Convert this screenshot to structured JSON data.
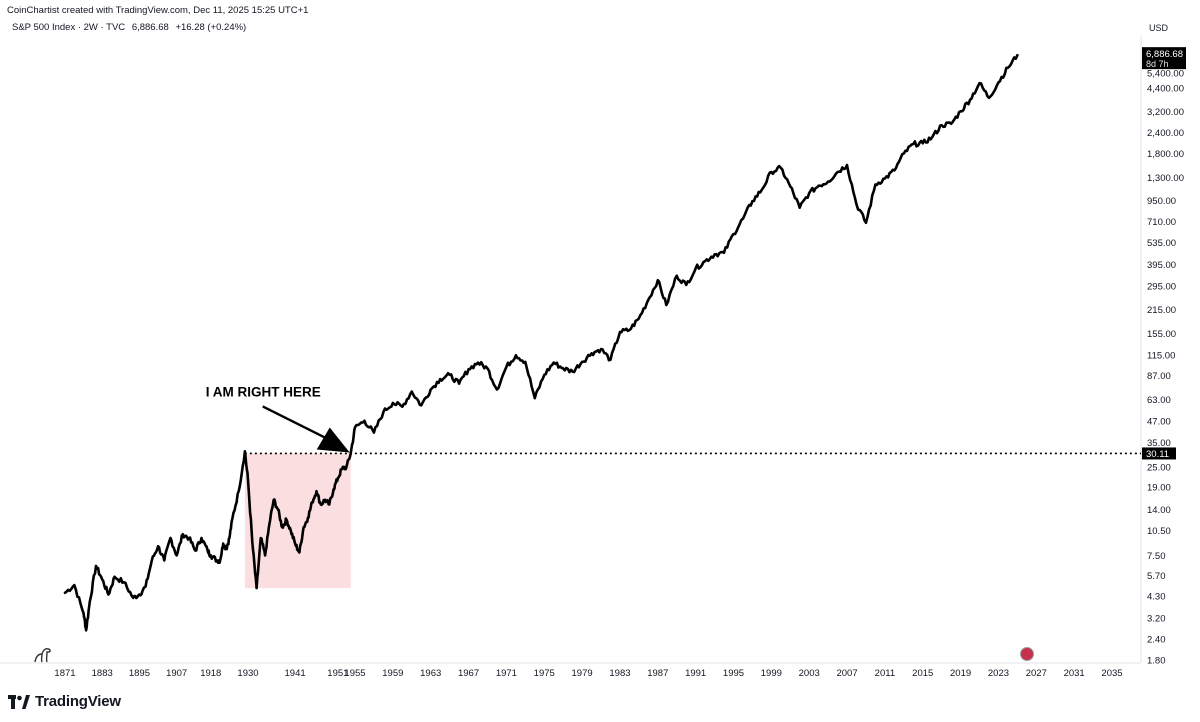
{
  "header": {
    "credit": "CoinChartist created with TradingView.com, Dec 11, 2025 15:25 UTC+1",
    "symbol": "S&P 500 Index · 2W · TVC",
    "price": "6,886.68",
    "change": "+16.28 (+0.24%)",
    "currency": "USD"
  },
  "price_badge": {
    "value": "6,886.68",
    "countdown": "8d 7h"
  },
  "level_badge": {
    "value": "30.11"
  },
  "annotation": {
    "text": "I AM RIGHT HERE"
  },
  "branding": {
    "logo_text": "TradingView",
    "logo_icon": "tradingview-logo-icon",
    "corner_icon": "dinosaur-icon",
    "flag_icon": "us-flag-icon"
  },
  "colors": {
    "line": "#000000",
    "highlight": "#fbdedf",
    "badge_bg": "#000000",
    "badge_text": "#ffffff"
  },
  "chart_data": {
    "type": "line",
    "scale": "log",
    "title": "",
    "xlabel": "",
    "ylabel": "",
    "ylim": [
      1.6,
      7000
    ],
    "xlim": [
      1868,
      2041
    ],
    "x_ticks": [
      "1871",
      "1883",
      "1895",
      "1907",
      "1918",
      "1930",
      "1941",
      "1951",
      "1955",
      "1959",
      "1963",
      "1967",
      "1971",
      "1975",
      "1979",
      "1983",
      "1987",
      "1991",
      "1995",
      "1999",
      "2003",
      "2007",
      "2011",
      "2015",
      "2019",
      "2023",
      "2027",
      "2031",
      "2035"
    ],
    "y_ticks": [
      "1.80",
      "2.40",
      "3.20",
      "4.30",
      "5.70",
      "7.50",
      "10.50",
      "14.00",
      "19.00",
      "25.00",
      "35.00",
      "47.00",
      "63.00",
      "87.00",
      "115.00",
      "155.00",
      "215.00",
      "295.00",
      "395.00",
      "535.00",
      "710.00",
      "950.00",
      "1,300.00",
      "1,800.00",
      "2,400.00",
      "3,200.00",
      "4,400.00",
      "5,400.00"
    ],
    "series": [
      {
        "name": "",
        "points": [
          [
            "1871",
            4.5
          ],
          [
            "1874",
            5.0
          ],
          [
            "1877",
            3.4
          ],
          [
            "1877.8",
            2.7
          ],
          [
            "1879",
            4.0
          ],
          [
            "1881",
            6.5
          ],
          [
            "1883",
            5.4
          ],
          [
            "1885",
            4.4
          ],
          [
            "1887",
            5.6
          ],
          [
            "1890",
            5.2
          ],
          [
            "1893",
            4.2
          ],
          [
            "1895",
            4.4
          ],
          [
            "1897",
            4.9
          ],
          [
            "1899",
            7.0
          ],
          [
            "1901",
            8.5
          ],
          [
            "1903",
            7.0
          ],
          [
            "1905",
            9.5
          ],
          [
            "1907",
            7.5
          ],
          [
            "1909",
            10.0
          ],
          [
            "1911",
            9.5
          ],
          [
            "1913",
            8.0
          ],
          [
            "1915",
            9.5
          ],
          [
            "1917",
            8.0
          ],
          [
            "1918",
            7.5
          ],
          [
            "1920",
            7.0
          ],
          [
            "1921",
            7.0
          ],
          [
            "1922",
            8.8
          ],
          [
            "1923",
            8.2
          ],
          [
            "1924",
            9.5
          ],
          [
            "1925",
            12.5
          ],
          [
            "1927",
            18.0
          ],
          [
            "1929",
            31.0
          ],
          [
            "1930",
            21.0
          ],
          [
            "1931",
            9.0
          ],
          [
            "1932",
            4.8
          ],
          [
            "1933",
            9.5
          ],
          [
            "1934",
            7.5
          ],
          [
            "1935",
            11.5
          ],
          [
            "1936",
            16.0
          ],
          [
            "1937",
            14.0
          ],
          [
            "1938",
            11.0
          ],
          [
            "1939",
            12.2
          ],
          [
            "1940",
            10.5
          ],
          [
            "1941",
            8.8
          ],
          [
            "1942",
            7.8
          ],
          [
            "1943",
            11.0
          ],
          [
            "1944",
            12.5
          ],
          [
            "1945",
            15.5
          ],
          [
            "1946",
            18.0
          ],
          [
            "1947",
            15.0
          ],
          [
            "1948",
            16.0
          ],
          [
            "1949",
            15.0
          ],
          [
            "1950",
            18.5
          ],
          [
            "1951",
            21.5
          ],
          [
            "1952",
            24.5
          ],
          [
            "1953",
            25.0
          ],
          [
            "1954",
            30.11
          ],
          [
            "1955",
            43.0
          ],
          [
            "1956",
            47.0
          ],
          [
            "1957",
            40.0
          ],
          [
            "1958",
            53.0
          ],
          [
            "1959",
            60.0
          ],
          [
            "1960",
            57.0
          ],
          [
            "1961",
            70.0
          ],
          [
            "1962",
            58.0
          ],
          [
            "1963",
            72.0
          ],
          [
            "1964",
            83.0
          ],
          [
            "1965",
            88.0
          ],
          [
            "1966",
            78.0
          ],
          [
            "1967",
            95.0
          ],
          [
            "1968",
            104.0
          ],
          [
            "1969",
            96.0
          ],
          [
            "1970",
            72.0
          ],
          [
            "1971",
            98.0
          ],
          [
            "1972",
            115.0
          ],
          [
            "1973",
            105.0
          ],
          [
            "1974",
            64.0
          ],
          [
            "1975",
            88.0
          ],
          [
            "1976",
            104.0
          ],
          [
            "1977",
            96.0
          ],
          [
            "1978",
            92.0
          ],
          [
            "1979",
            105.0
          ],
          [
            "1980",
            118.0
          ],
          [
            "1981",
            125.0
          ],
          [
            "1982",
            108.0
          ],
          [
            "1983",
            158.0
          ],
          [
            "1984",
            162.0
          ],
          [
            "1985",
            190.0
          ],
          [
            "1986",
            245.0
          ],
          [
            "1987",
            320.0
          ],
          [
            "1987.9",
            228.0
          ],
          [
            "1989",
            340.0
          ],
          [
            "1990",
            300.0
          ],
          [
            "1991",
            375.0
          ],
          [
            "1992",
            415.0
          ],
          [
            "1993",
            455.0
          ],
          [
            "1994",
            465.0
          ],
          [
            "1995",
            600.0
          ],
          [
            "1996",
            740.0
          ],
          [
            "1997",
            940.0
          ],
          [
            "1998",
            1100.0
          ],
          [
            "1999",
            1400.0
          ],
          [
            "2000",
            1480.0
          ],
          [
            "2001",
            1150.0
          ],
          [
            "2002",
            860.0
          ],
          [
            "2003",
            1050.0
          ],
          [
            "2004",
            1160.0
          ],
          [
            "2005",
            1230.0
          ],
          [
            "2006",
            1400.0
          ],
          [
            "2007",
            1540.0
          ],
          [
            "2008",
            900.0
          ],
          [
            "2009",
            700.0
          ],
          [
            "2010",
            1180.0
          ],
          [
            "2011",
            1280.0
          ],
          [
            "2012",
            1430.0
          ],
          [
            "2013",
            1800.0
          ],
          [
            "2014",
            2050.0
          ],
          [
            "2015",
            2070.0
          ],
          [
            "2016",
            2250.0
          ],
          [
            "2017",
            2650.0
          ],
          [
            "2018",
            2700.0
          ],
          [
            "2019",
            3200.0
          ],
          [
            "2020",
            3750.0
          ],
          [
            "2021",
            4700.0
          ],
          [
            "2022",
            3850.0
          ],
          [
            "2023",
            4750.0
          ],
          [
            "2024",
            5800.0
          ],
          [
            "2025",
            6886.68
          ]
        ]
      }
    ]
  }
}
